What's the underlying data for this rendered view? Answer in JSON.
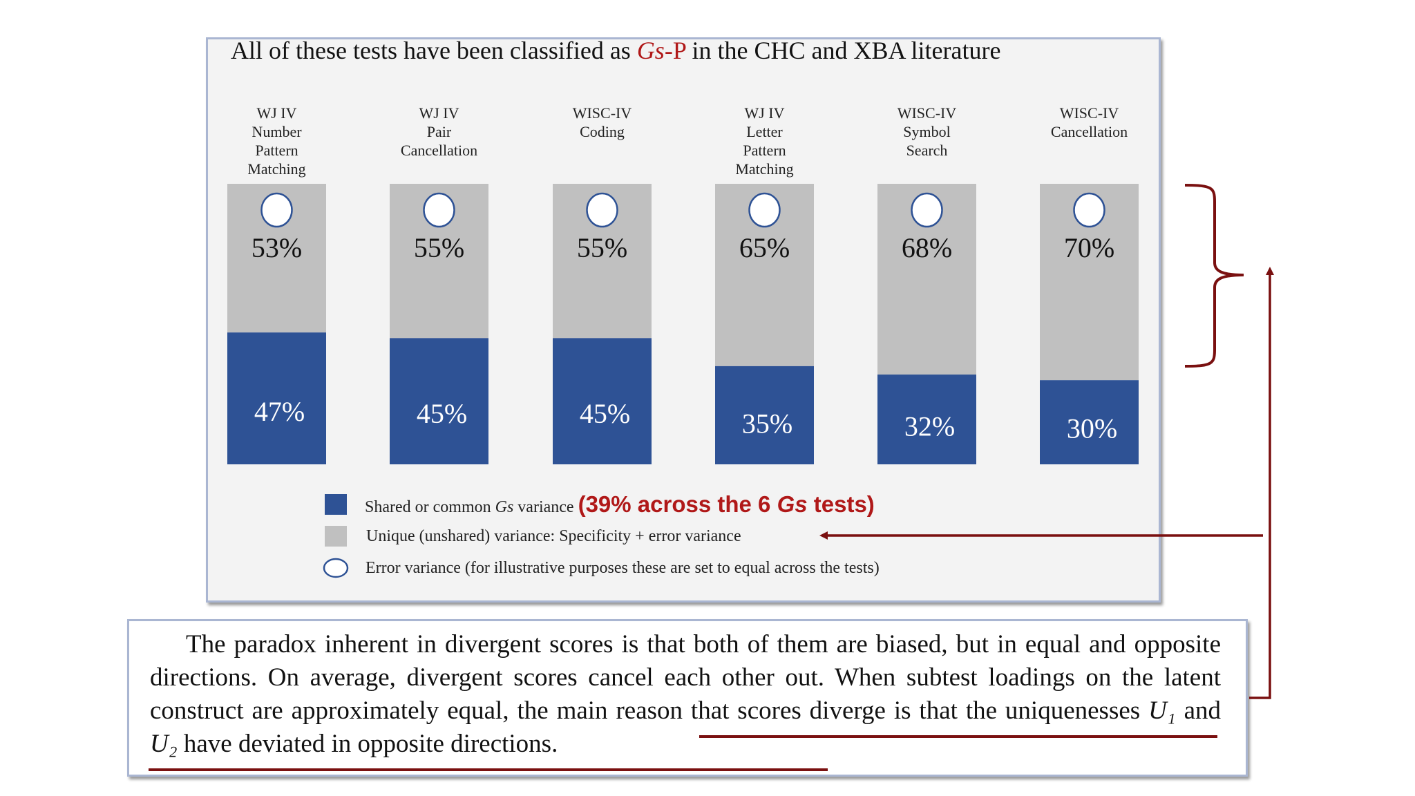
{
  "title": {
    "prefix": "All of these tests have been classified as ",
    "highlight_italic": "Gs",
    "highlight_dash": "-P",
    "suffix": " in the CHC and XBA literature"
  },
  "chart_data": {
    "type": "bar",
    "stacked": true,
    "categories": [
      "WJ IV\nNumber\nPattern\nMatching",
      "WJ IV\nPair\nCancellation",
      "WISC-IV\nCoding",
      "WJ IV\nLetter\nPattern\nMatching",
      "WISC-IV\nSymbol\nSearch",
      "WISC-IV\nCancellation"
    ],
    "series": [
      {
        "name": "Shared or common Gs variance",
        "values": [
          47,
          45,
          45,
          35,
          32,
          30
        ],
        "labels": [
          "47%",
          "45%",
          "45%",
          "35%",
          "32%",
          "30%"
        ],
        "color": "#2e5295"
      },
      {
        "name": "Unique (unshared) variance: Specificity + error variance",
        "values": [
          53,
          55,
          55,
          65,
          68,
          70
        ],
        "labels": [
          "53%",
          "55%",
          "55%",
          "65%",
          "68%",
          "70%"
        ],
        "color": "#c0c0c0"
      }
    ],
    "ylim": [
      0,
      100
    ]
  },
  "legend": {
    "shared_prefix": "Shared or common ",
    "shared_italic": "Gs",
    "shared_suffix": " variance ",
    "shared_highlight_a": "(39% across the 6 ",
    "shared_highlight_italic": "Gs",
    "shared_highlight_b": " tests)",
    "unique": "Unique (unshared) variance:  Specificity + error variance",
    "error": "Error variance (for illustrative purposes these are set to equal across the tests)"
  },
  "paragraph": {
    "text": "The paradox inherent in divergent scores is that both of them are biased, but in equal and opposite directions. On average, divergent scores cancel each other out. When subtest loadings on the latent construct are approximately equal, the main reason that scores diverge is that the uniquenesses ",
    "u1": "U₁",
    "and": " and ",
    "u2": "U₂",
    "end": " have deviated in opposite directions."
  },
  "colors": {
    "shared": "#2e5295",
    "unique": "#c0c0c0",
    "accent": "#b01818",
    "annotation": "#7a1010"
  }
}
